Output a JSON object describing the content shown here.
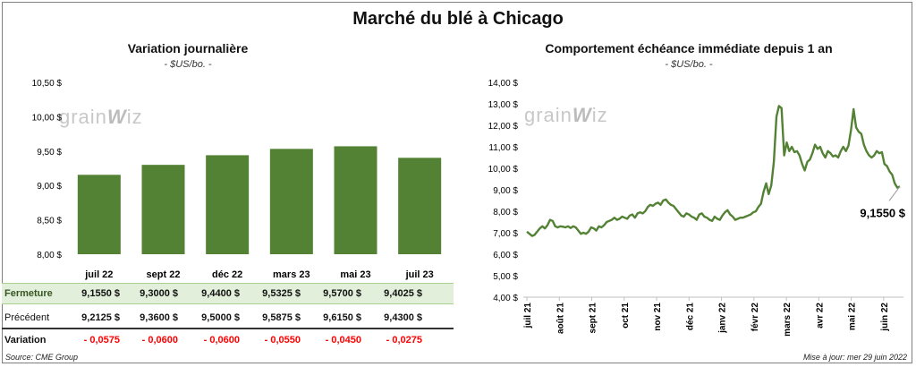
{
  "title": "Marché du blé à Chicago",
  "logo_text": "grainwiz",
  "footer": {
    "source": "Source: CME Group",
    "updated": "Mise à jour: mer 29 juin 2022"
  },
  "colors": {
    "bar": "#548235",
    "line": "#548235",
    "table_highlight": "#e2efda",
    "negative": "#ff0000"
  },
  "chart_data": [
    {
      "type": "bar",
      "title": "Variation  journalière",
      "subtitle": "- $US/bo. -",
      "categories": [
        "juil 22",
        "sept 22",
        "déc 22",
        "mars 23",
        "mai 23",
        "juil 23"
      ],
      "values": [
        9.155,
        9.3,
        9.44,
        9.5325,
        9.57,
        9.4025
      ],
      "ylim": [
        8.0,
        10.5
      ],
      "yticks": [
        "8,00 $",
        "8,50 $",
        "9,00 $",
        "9,50 $",
        "10,00 $",
        "10,50 $"
      ],
      "grid": false
    },
    {
      "type": "line",
      "title": "Comportement  échéance immédiate depuis 1 an",
      "subtitle": "- $US/bo. -",
      "ylim": [
        4.0,
        14.0
      ],
      "yticks": [
        "4,00 $",
        "5,00 $",
        "6,00 $",
        "7,00 $",
        "8,00 $",
        "9,00 $",
        "10,00 $",
        "11,00 $",
        "12,00 $",
        "13,00 $",
        "14,00 $"
      ],
      "xticks": [
        "juil 21",
        "août 21",
        "sept 21",
        "oct 21",
        "nov 21",
        "déc 21",
        "janv 22",
        "févr 22",
        "mars 22",
        "avr 22",
        "mai 22",
        "juin 22"
      ],
      "annotation": "9,1550 $",
      "series": [
        {
          "values": [
            7.05,
            6.95,
            6.85,
            6.9,
            7.05,
            7.2,
            7.3,
            7.2,
            7.35,
            7.6,
            7.55,
            7.3,
            7.25,
            7.3,
            7.28,
            7.25,
            7.3,
            7.22,
            7.3,
            7.25,
            7.1,
            6.95,
            7.0,
            6.95,
            7.05,
            7.25,
            7.2,
            7.1,
            7.3,
            7.25,
            7.35,
            7.5,
            7.55,
            7.6,
            7.7,
            7.6,
            7.65,
            7.75,
            7.7,
            7.65,
            7.8,
            7.85,
            7.7,
            7.9,
            7.95,
            7.9,
            8.0,
            8.2,
            8.3,
            8.25,
            8.35,
            8.4,
            8.3,
            8.5,
            8.55,
            8.4,
            8.3,
            8.25,
            8.1,
            7.95,
            7.8,
            7.75,
            7.9,
            7.85,
            7.75,
            7.7,
            7.6,
            7.85,
            7.9,
            7.75,
            7.7,
            7.6,
            7.55,
            7.75,
            7.65,
            7.6,
            7.8,
            7.95,
            8.05,
            7.85,
            7.75,
            7.6,
            7.65,
            7.7,
            7.7,
            7.75,
            7.8,
            7.85,
            7.95,
            8.0,
            8.2,
            8.35,
            8.9,
            9.3,
            8.8,
            9.2,
            10.3,
            12.4,
            12.9,
            12.8,
            10.6,
            11.2,
            10.8,
            11.0,
            10.75,
            10.8,
            10.6,
            10.2,
            9.9,
            10.3,
            10.4,
            10.7,
            11.1,
            10.9,
            11.0,
            10.7,
            10.5,
            10.8,
            10.7,
            10.55,
            10.6,
            10.5,
            10.8,
            11.0,
            10.8,
            11.05,
            11.8,
            12.75,
            11.9,
            11.7,
            11.6,
            11.1,
            10.8,
            10.6,
            10.5,
            10.6,
            10.8,
            10.7,
            10.75,
            10.2,
            10.1,
            9.85,
            9.7,
            9.3,
            9.1,
            9.155
          ]
        }
      ]
    }
  ],
  "table": {
    "rows": [
      {
        "label": "Fermeture",
        "values": [
          "9,1550  $",
          "9,3000  $",
          "9,4400  $",
          "9,5325  $",
          "9,5700  $",
          "9,4025  $"
        ]
      },
      {
        "label": "Précédent",
        "values": [
          "9,2125  $",
          "9,3600  $",
          "9,5000  $",
          "9,5875  $",
          "9,6150  $",
          "9,4300  $"
        ]
      },
      {
        "label": "Variation",
        "values": [
          "- 0,0575",
          "- 0,0600",
          "- 0,0600",
          "- 0,0550",
          "- 0,0450",
          "- 0,0275"
        ]
      }
    ]
  }
}
